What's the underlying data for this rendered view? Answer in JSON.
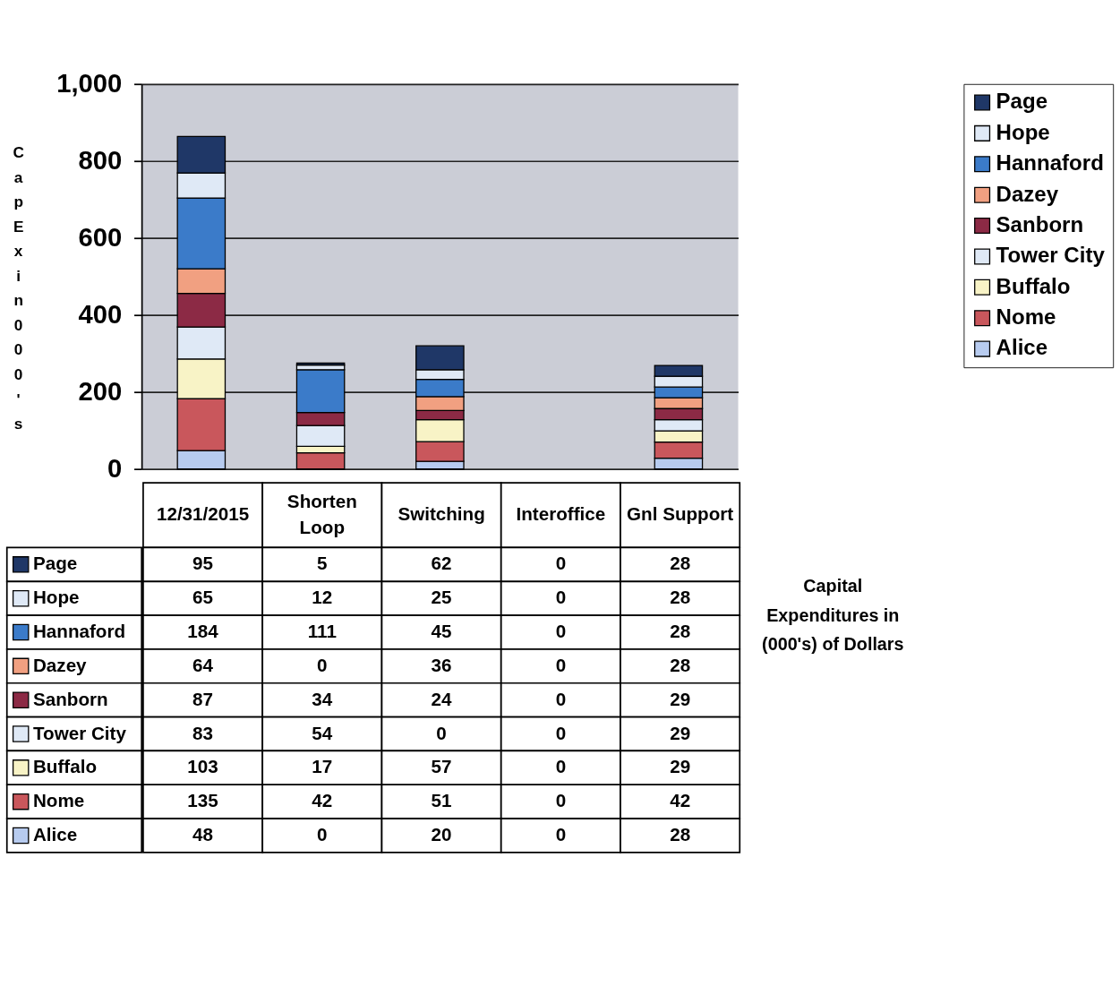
{
  "chart_data": {
    "type": "bar",
    "stacked": true,
    "ylabel": "CapEx in 000's",
    "categories": [
      "12/31/2015",
      "Shorten Loop",
      "Switching",
      "Interoffice",
      "Gnl Support"
    ],
    "series": [
      {
        "name": "Alice",
        "color": "#b7cbef",
        "values": [
          48,
          0,
          20,
          0,
          28
        ]
      },
      {
        "name": "Nome",
        "color": "#c9575c",
        "values": [
          135,
          42,
          51,
          0,
          42
        ]
      },
      {
        "name": "Buffalo",
        "color": "#f8f3c6",
        "values": [
          103,
          17,
          57,
          0,
          29
        ]
      },
      {
        "name": "Tower City",
        "color": "#dfe9f6",
        "values": [
          83,
          54,
          0,
          0,
          29
        ]
      },
      {
        "name": "Sanborn",
        "color": "#8c2a45",
        "values": [
          87,
          34,
          24,
          0,
          29
        ]
      },
      {
        "name": "Dazey",
        "color": "#f1a081",
        "values": [
          64,
          0,
          36,
          0,
          28
        ]
      },
      {
        "name": "Hannaford",
        "color": "#3b7bc9",
        "values": [
          184,
          111,
          45,
          0,
          28
        ]
      },
      {
        "name": "Hope",
        "color": "#dfe9f6",
        "values": [
          65,
          12,
          25,
          0,
          28
        ]
      },
      {
        "name": "Page",
        "color": "#1f3767",
        "values": [
          95,
          5,
          62,
          0,
          28
        ]
      }
    ],
    "ylim": [
      0,
      1000
    ],
    "yticks": [
      0,
      200,
      400,
      600,
      800,
      {
        "value": 1000,
        "label": "1,000"
      }
    ],
    "grid": "y",
    "legend": "right",
    "data_labels": true,
    "annotations": [
      "Capital Expenditures in (000's) of Dollars"
    ]
  }
}
